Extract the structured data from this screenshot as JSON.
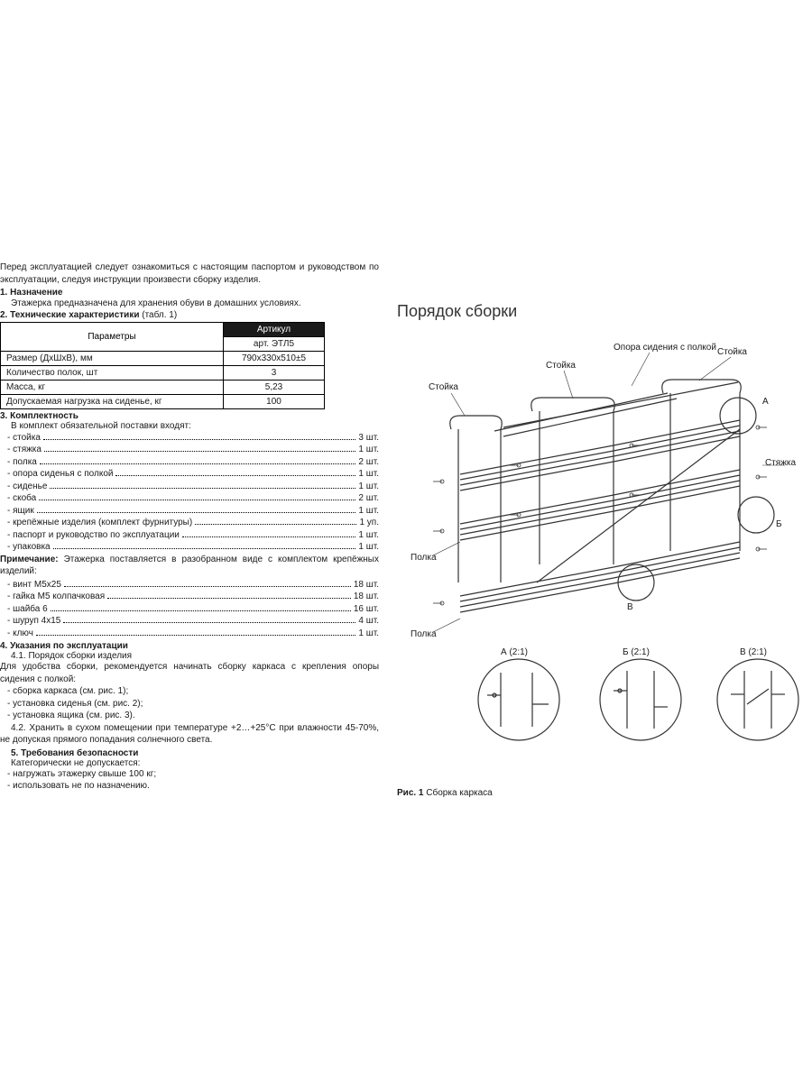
{
  "intro": "Перед эксплуатацией следует ознакомиться с настоящим паспортом и руководством по эксплуатации, следуя инструкции произвести сборку изделия.",
  "sections": {
    "s1_title": "1. Назначение",
    "s1_text": "Этажерка предназначена для хранения обуви в домашних условиях.",
    "s2_title": "2. Технические характеристики",
    "s2_suffix": " (табл. 1)",
    "s3_title": "3. Комплектность",
    "s3_intro": "В комплект обязательной поставки входят:",
    "s4_title": "4. Указания по эксплуатации",
    "s4_1": "4.1.  Порядок сборки изделия",
    "s4_1_text": "Для удобства сборки, рекомендуется начинать сборку каркаса с крепления опоры сидения с полкой:",
    "s4_1_a": "- сборка каркаса (см. рис. 1);",
    "s4_1_b": "- установка сиденья (см. рис. 2);",
    "s4_1_c": "- установка ящика (см. рис. 3).",
    "s4_2": "4.2. Хранить в сухом помещении при температуре +2…+25°С при влажности 45-70%, не допуская прямого попадания солнечного света.",
    "s5_title": "5. Требования безопасности",
    "s5_intro": "Категорически не допускается:",
    "s5_a": "- нагружать этажерку свыше 100 кг;",
    "s5_b": "- использовать не по назначению.",
    "noteLabel": "Примечание:",
    "noteText": " Этажерка поставляется в разобранном виде с комплектом крепёжных изделий:"
  },
  "specTable": {
    "paramHeader": "Параметры",
    "articleHeader": "Артикул",
    "articleValue": "арт. ЭТЛ5",
    "rows": [
      {
        "label": "Размер (ДхШхВ), мм",
        "value": "790х330х510±5"
      },
      {
        "label": "Количество полок, шт",
        "value": "3"
      },
      {
        "label": "Масса, кг",
        "value": "5,23"
      },
      {
        "label": "Допускаемая нагрузка на сиденье, кг",
        "value": "100"
      }
    ]
  },
  "parts": [
    {
      "name": "- стойка",
      "qty": "3 шт."
    },
    {
      "name": "- стяжка",
      "qty": "1 шт."
    },
    {
      "name": "- полка",
      "qty": "2 шт."
    },
    {
      "name": "- опора сиденья с полкой",
      "qty": "1 шт."
    },
    {
      "name": "- сиденье",
      "qty": "1 шт."
    },
    {
      "name": "- скоба",
      "qty": "2 шт."
    },
    {
      "name": "- ящик",
      "qty": "1 шт."
    },
    {
      "name": "- крепёжные изделия (комплект фурнитуры)",
      "qty": "1 уп."
    },
    {
      "name": "- паспорт и руководство по эксплуатации",
      "qty": "1 шт."
    },
    {
      "name": "- упаковка",
      "qty": "1 шт."
    }
  ],
  "fasteners": [
    {
      "name": "- винт М5х25",
      "qty": "18 шт."
    },
    {
      "name": "- гайка М5 колпачковая",
      "qty": "18 шт."
    },
    {
      "name": "- шайба 6",
      "qty": "16 шт."
    },
    {
      "name": "- шуруп 4х15",
      "qty": "4 шт."
    },
    {
      "name": "- ключ",
      "qty": "1 шт."
    }
  ],
  "assembly": {
    "title": "Порядок сборки",
    "figNum": "Рис. 1",
    "figText": " Сборка каркаса",
    "labels": {
      "stoika": "Стойка",
      "polka": "Полка",
      "styazhka": "Стяжка",
      "opora": "Опора сидения с полкой",
      "detA": "А (2:1)",
      "detB": "Б (2:1)",
      "detV": "В (2:1)",
      "A": "А",
      "B": "Б",
      "V": "В"
    }
  },
  "colors": {
    "text": "#1a1a1a",
    "tableHeaderBg": "#1a1a1a",
    "lineStroke": "#333333"
  }
}
